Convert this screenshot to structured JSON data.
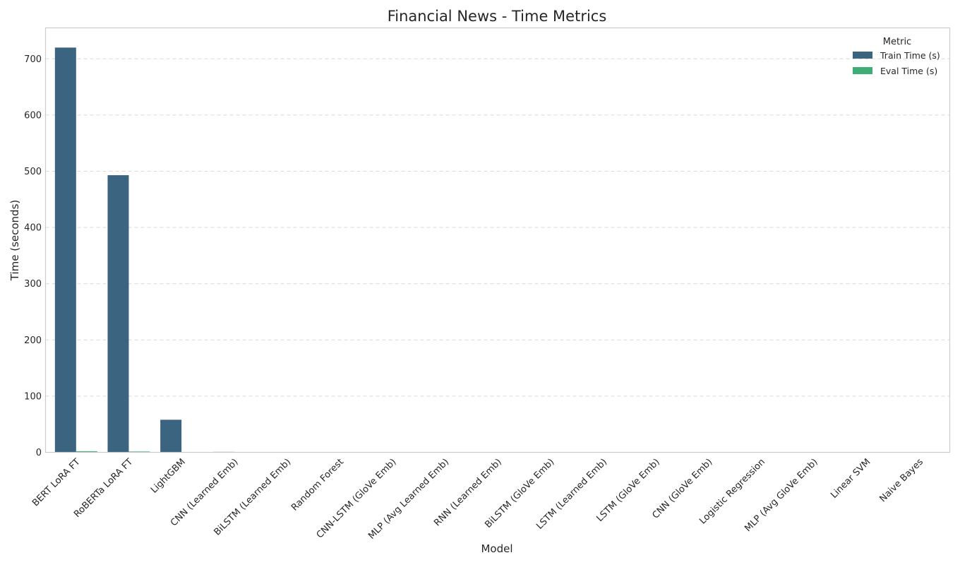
{
  "chart_data": {
    "type": "bar",
    "title": "Financial News - Time Metrics",
    "xlabel": "Model",
    "ylabel": "Time (seconds)",
    "ylim": [
      0,
      755
    ],
    "yticks": [
      0,
      100,
      200,
      300,
      400,
      500,
      600,
      700
    ],
    "grid": "y",
    "legend": {
      "title": "Metric",
      "placement": "top-right"
    },
    "categories": [
      "BERT LoRA FT",
      "RoBERTa LoRA FT",
      "LightGBM",
      "CNN (Learned Emb)",
      "BiLSTM (Learned Emb)",
      "Random Forest",
      "CNN-LSTM (GloVe Emb)",
      "MLP (Avg Learned Emb)",
      "RNN (Learned Emb)",
      "BiLSTM (GloVe Emb)",
      "LSTM (Learned Emb)",
      "LSTM (GloVe Emb)",
      "CNN (GloVe Emb)",
      "Logistic Regression",
      "MLP (Avg GloVe Emb)",
      "Linear SVM",
      "Naive Bayes"
    ],
    "series": [
      {
        "name": "Train Time (s)",
        "color": "#3b6481",
        "values": [
          720,
          493,
          58,
          0.8,
          0.6,
          0.5,
          0.4,
          0.3,
          0.3,
          0.3,
          0.3,
          0.2,
          0.2,
          0.1,
          0.1,
          0.1,
          0.05
        ]
      },
      {
        "name": "Eval Time (s)",
        "color": "#3fae76",
        "values": [
          2.0,
          1.5,
          0.2,
          0.1,
          0.1,
          0.1,
          0.1,
          0.05,
          0.05,
          0.05,
          0.05,
          0.05,
          0.05,
          0.05,
          0.05,
          0.02,
          0.02
        ]
      }
    ]
  }
}
